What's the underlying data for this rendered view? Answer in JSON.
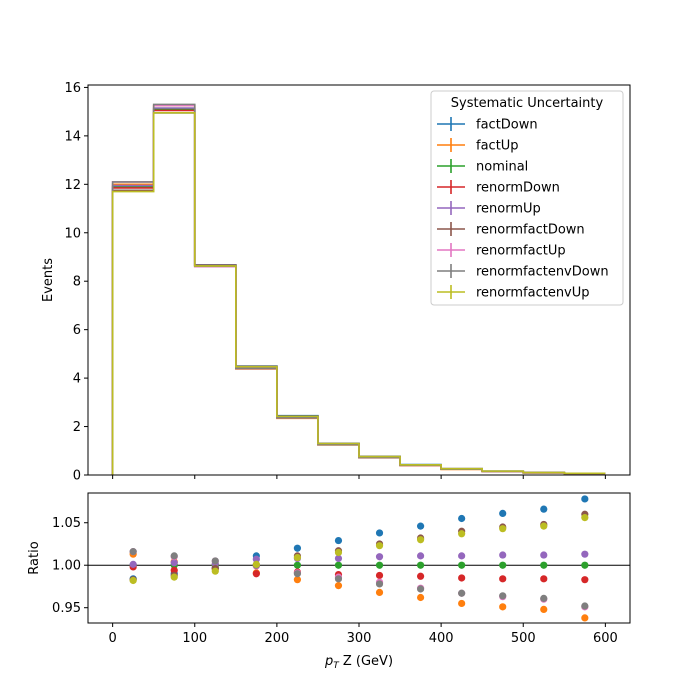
{
  "chart_data": [
    {
      "type": "line",
      "ylabel": "Events",
      "xlim": [
        -30,
        630
      ],
      "ylim": [
        0,
        16.1
      ],
      "yticks": [
        "0",
        "2",
        "4",
        "6",
        "8",
        "10",
        "12",
        "14",
        "16"
      ],
      "bin_edges": [
        0,
        50,
        100,
        150,
        200,
        250,
        300,
        350,
        400,
        450,
        500,
        550,
        600
      ],
      "legend": {
        "title": "Systematic Uncertainty",
        "placement": "upper-right"
      },
      "series": [
        {
          "name": "factDown",
          "color": "#1f77b4",
          "values": [
            11.75,
            14.95,
            8.67,
            4.5,
            2.45,
            1.31,
            0.77,
            0.43,
            0.26,
            0.16,
            0.1,
            0.07
          ]
        },
        {
          "name": "factUp",
          "color": "#ff7f0e",
          "values": [
            12.0,
            15.25,
            8.6,
            4.38,
            2.34,
            1.24,
            0.71,
            0.39,
            0.23,
            0.14,
            0.09,
            0.06
          ]
        },
        {
          "name": "nominal",
          "color": "#2ca02c",
          "values": [
            11.9,
            15.1,
            8.65,
            4.45,
            2.4,
            1.28,
            0.74,
            0.41,
            0.25,
            0.15,
            0.1,
            0.065
          ]
        },
        {
          "name": "renormDown",
          "color": "#d62728",
          "values": [
            11.85,
            15.05,
            8.63,
            4.4,
            2.38,
            1.26,
            0.73,
            0.4,
            0.24,
            0.15,
            0.09,
            0.063
          ]
        },
        {
          "name": "renormUp",
          "color": "#9467bd",
          "values": [
            11.95,
            15.15,
            8.66,
            4.47,
            2.42,
            1.29,
            0.75,
            0.42,
            0.25,
            0.15,
            0.1,
            0.066
          ]
        },
        {
          "name": "renormfactDown",
          "color": "#8c564b",
          "values": [
            11.75,
            14.95,
            8.66,
            4.48,
            2.43,
            1.3,
            0.76,
            0.42,
            0.26,
            0.16,
            0.1,
            0.068
          ]
        },
        {
          "name": "renormfactUp",
          "color": "#e377c2",
          "values": [
            12.1,
            15.25,
            8.6,
            4.4,
            2.36,
            1.25,
            0.72,
            0.4,
            0.24,
            0.15,
            0.09,
            0.062
          ]
        },
        {
          "name": "renormfactenvDown",
          "color": "#7f7f7f",
          "values": [
            12.1,
            15.3,
            8.62,
            4.4,
            2.36,
            1.25,
            0.72,
            0.4,
            0.24,
            0.15,
            0.09,
            0.062
          ]
        },
        {
          "name": "renormfactenvUp",
          "color": "#bcbd22",
          "values": [
            11.7,
            14.95,
            8.63,
            4.47,
            2.42,
            1.3,
            0.76,
            0.42,
            0.26,
            0.16,
            0.1,
            0.068
          ]
        }
      ]
    },
    {
      "type": "scatter",
      "xlabel_base": "p",
      "xlabel_sub": "T",
      "xlabel_rest": " Z (GeV)",
      "ylabel": "Ratio",
      "xlim": [
        -30,
        630
      ],
      "ylim": [
        0.932,
        1.085
      ],
      "yticks": [
        "0.95",
        "1.00",
        "1.05"
      ],
      "xticks": [
        "0",
        "100",
        "200",
        "300",
        "400",
        "500",
        "600"
      ],
      "x": [
        25,
        75,
        125,
        175,
        225,
        275,
        325,
        375,
        425,
        475,
        525,
        575
      ],
      "reference_line": 1.0,
      "series": [
        {
          "name": "factDown",
          "color": "#1f77b4",
          "values": [
            0.984,
            0.99,
            0.997,
            1.011,
            1.02,
            1.029,
            1.038,
            1.046,
            1.055,
            1.061,
            1.066,
            1.078
          ]
        },
        {
          "name": "factUp",
          "color": "#ff7f0e",
          "values": [
            1.013,
            1.004,
            1.0,
            0.991,
            0.983,
            0.976,
            0.968,
            0.962,
            0.955,
            0.951,
            0.948,
            0.938
          ]
        },
        {
          "name": "nominal",
          "color": "#2ca02c",
          "values": [
            1.0,
            1.0,
            1.0,
            1.0,
            1.0,
            1.0,
            1.0,
            1.0,
            1.0,
            1.0,
            1.0,
            1.0
          ]
        },
        {
          "name": "renormDown",
          "color": "#d62728",
          "values": [
            0.998,
            0.994,
            0.996,
            0.99,
            0.992,
            0.989,
            0.988,
            0.987,
            0.985,
            0.984,
            0.984,
            0.983
          ]
        },
        {
          "name": "renormUp",
          "color": "#9467bd",
          "values": [
            1.001,
            1.003,
            1.002,
            1.007,
            1.008,
            1.008,
            1.01,
            1.011,
            1.011,
            1.012,
            1.012,
            1.013
          ]
        },
        {
          "name": "renormfactDown",
          "color": "#8c564b",
          "values": [
            0.983,
            0.988,
            0.996,
            1.0,
            1.011,
            1.017,
            1.025,
            1.032,
            1.04,
            1.045,
            1.048,
            1.06
          ]
        },
        {
          "name": "renormfactUp",
          "color": "#e377c2",
          "values": [
            1.016,
            1.01,
            1.005,
            0.999,
            0.991,
            0.986,
            0.98,
            0.973,
            0.967,
            0.963,
            0.96,
            0.951
          ]
        },
        {
          "name": "renormfactenvDown",
          "color": "#7f7f7f",
          "values": [
            1.016,
            1.011,
            1.005,
            1.0,
            0.99,
            0.984,
            0.978,
            0.972,
            0.967,
            0.964,
            0.961,
            0.952
          ]
        },
        {
          "name": "renormfactenvUp",
          "color": "#bcbd22",
          "values": [
            0.982,
            0.986,
            0.993,
            1.001,
            1.009,
            1.015,
            1.023,
            1.03,
            1.037,
            1.043,
            1.046,
            1.056
          ]
        }
      ]
    }
  ]
}
